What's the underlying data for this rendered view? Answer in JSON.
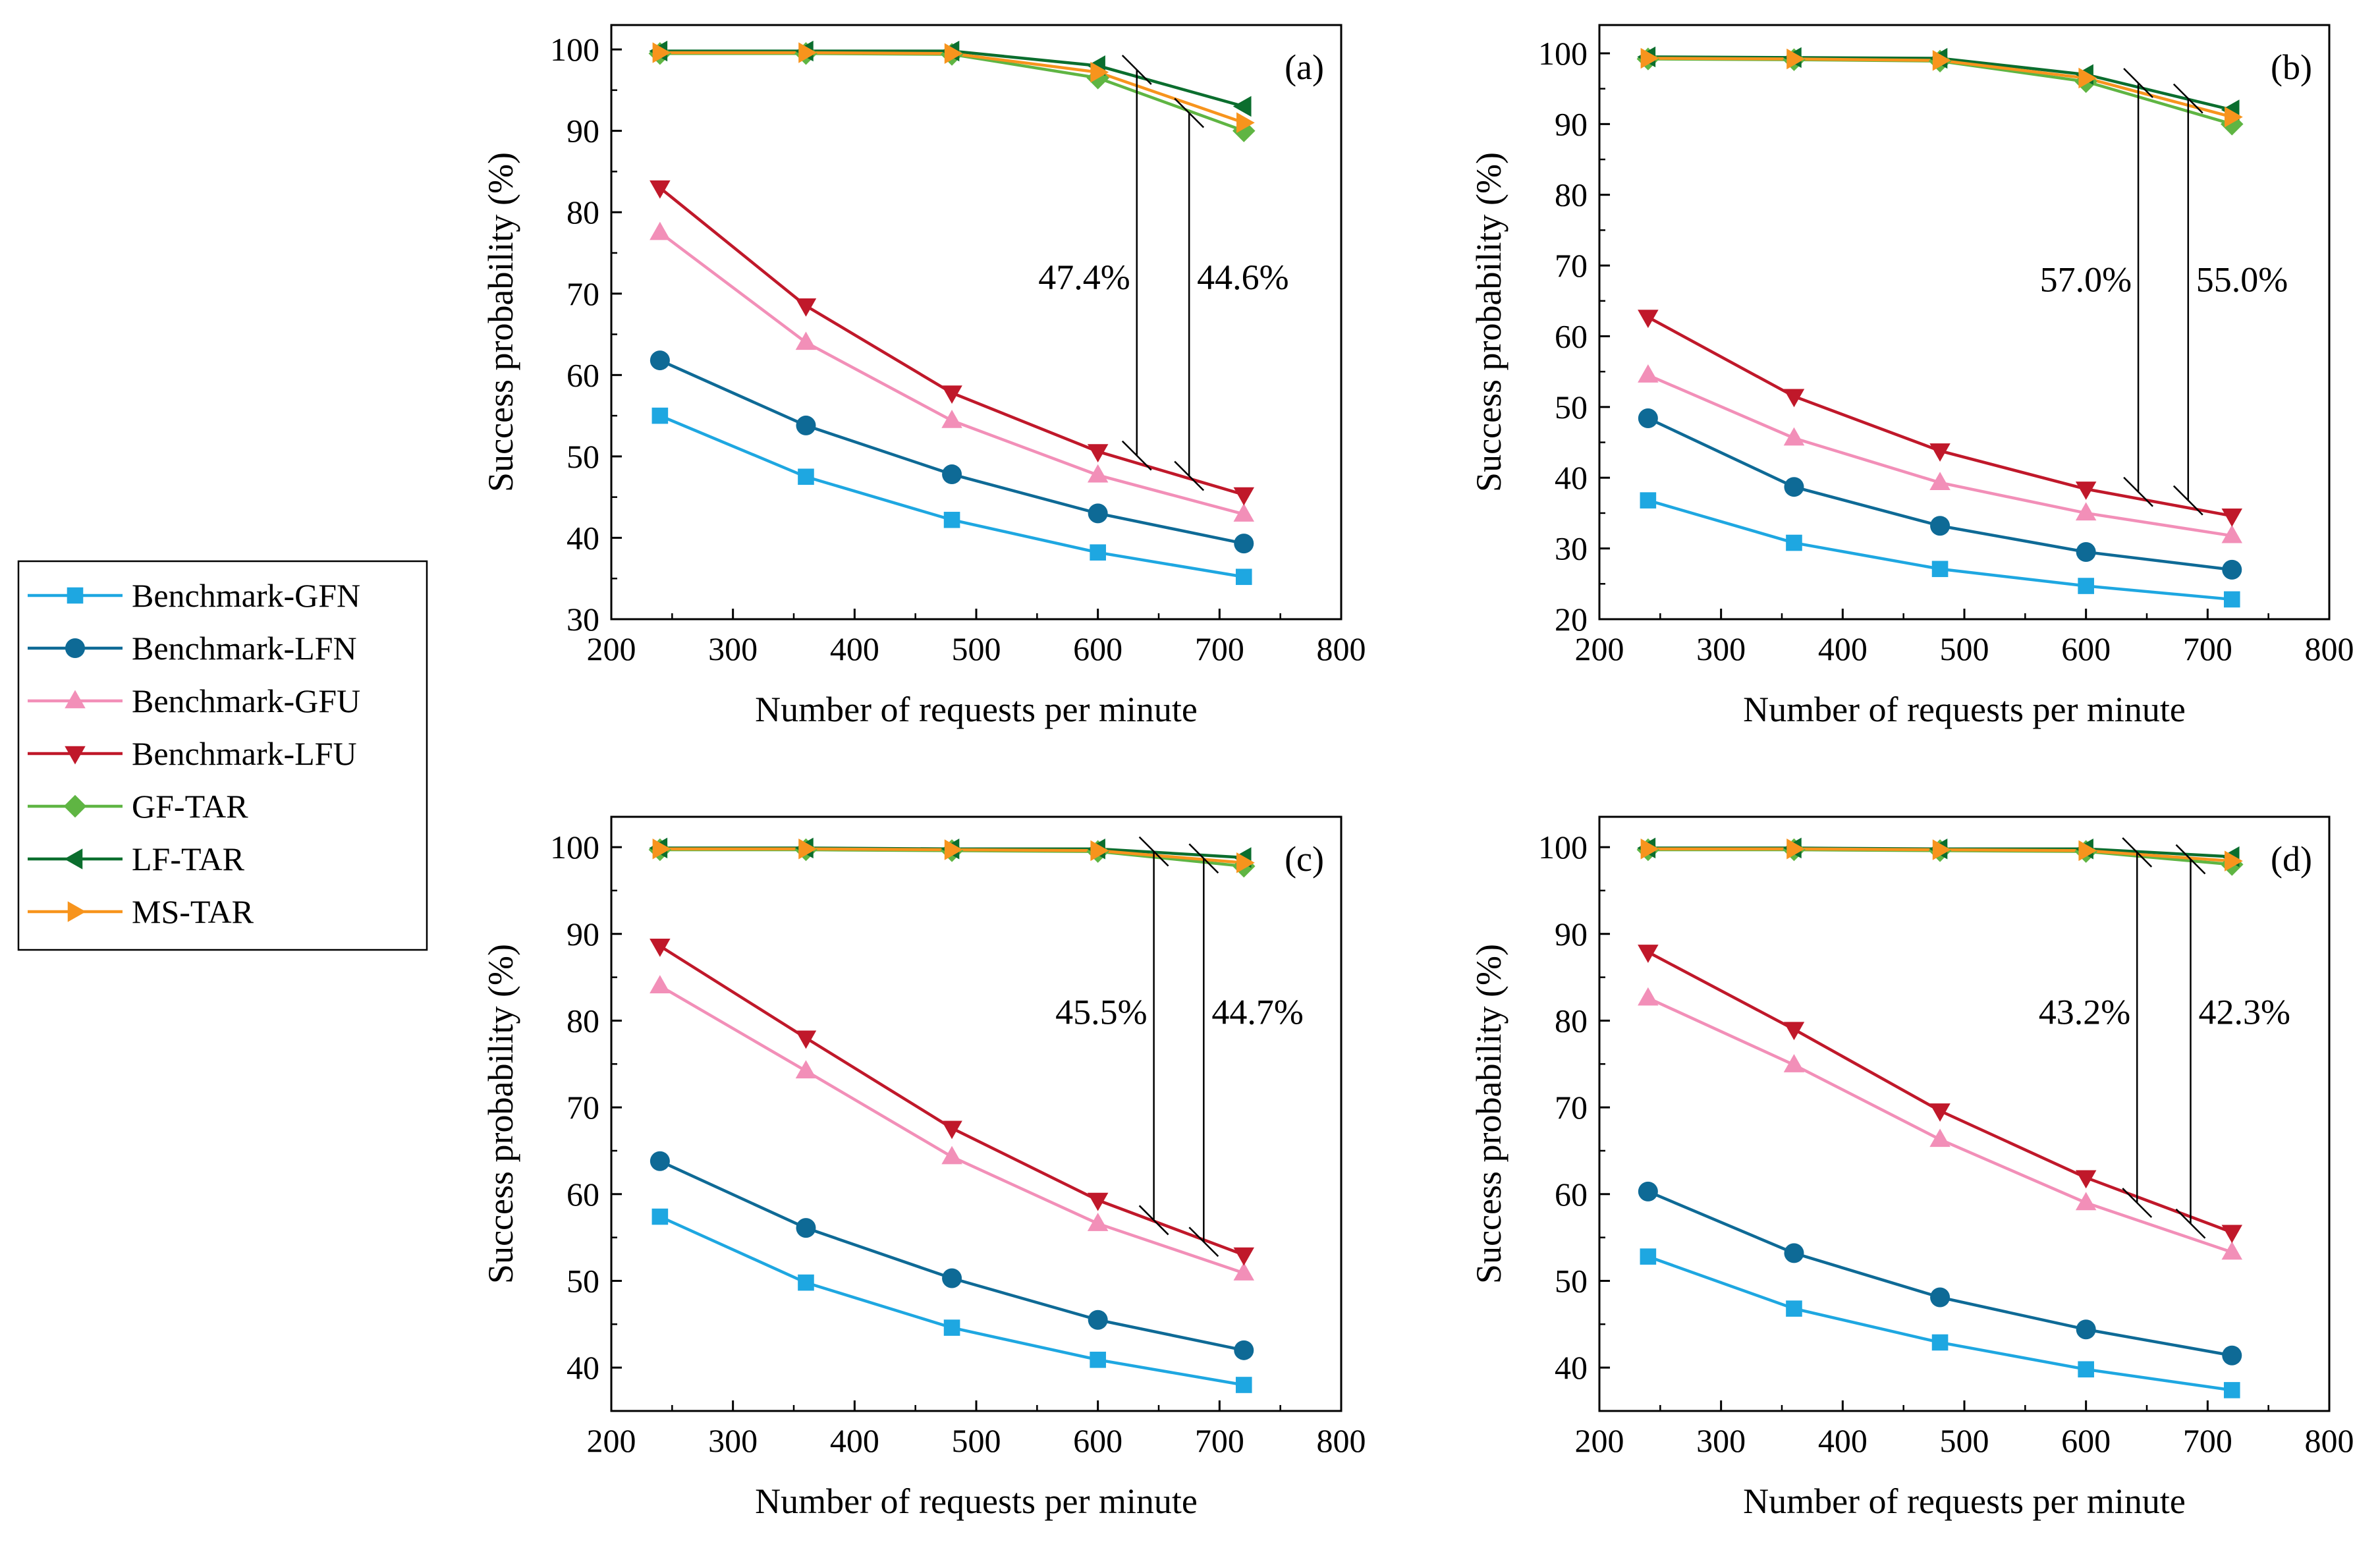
{
  "legend": {
    "items": [
      {
        "name": "Benchmark-GFN",
        "color": "#1ea7e1",
        "marker": "square"
      },
      {
        "name": "Benchmark-LFN",
        "color": "#0e6a96",
        "marker": "circle"
      },
      {
        "name": "Benchmark-GFU",
        "color": "#f28fb8",
        "marker": "triangle-up"
      },
      {
        "name": "Benchmark-LFU",
        "color": "#c0182a",
        "marker": "triangle-down"
      },
      {
        "name": "GF-TAR",
        "color": "#5fb543",
        "marker": "diamond"
      },
      {
        "name": "LF-TAR",
        "color": "#0b6e2e",
        "marker": "triangle-left"
      },
      {
        "name": "MS-TAR",
        "color": "#f7941d",
        "marker": "triangle-right"
      }
    ]
  },
  "chart_data": [
    {
      "type": "line",
      "panel": "(a)",
      "xlabel": "Number of requests per minute",
      "ylabel": "Success probability (%)",
      "xlim": [
        200,
        800
      ],
      "ylim": [
        30,
        103
      ],
      "xticks": [
        200,
        300,
        400,
        500,
        600,
        700,
        800
      ],
      "yticks": [
        30,
        40,
        50,
        60,
        70,
        80,
        90,
        100
      ],
      "x": [
        240,
        360,
        480,
        600,
        720
      ],
      "series": [
        {
          "name": "Benchmark-GFN",
          "values": [
            55.0,
            47.5,
            42.2,
            38.2,
            35.2
          ]
        },
        {
          "name": "Benchmark-LFN",
          "values": [
            61.8,
            53.8,
            47.8,
            43.0,
            39.3
          ]
        },
        {
          "name": "Benchmark-GFU",
          "values": [
            77.5,
            64.0,
            54.4,
            47.7,
            42.9
          ]
        },
        {
          "name": "Benchmark-LFU",
          "values": [
            83.0,
            68.5,
            57.8,
            50.6,
            45.3
          ]
        },
        {
          "name": "GF-TAR",
          "values": [
            99.5,
            99.5,
            99.4,
            96.5,
            90.0
          ]
        },
        {
          "name": "LF-TAR",
          "values": [
            99.8,
            99.8,
            99.8,
            98.0,
            93.0
          ]
        },
        {
          "name": "MS-TAR",
          "values": [
            99.6,
            99.6,
            99.5,
            97.2,
            91.0
          ]
        }
      ],
      "annotations": [
        {
          "text": "47.4%",
          "x": 632,
          "y_top": 97.5,
          "y_bottom": 50.1,
          "label_y": 72,
          "side": "left"
        },
        {
          "text": "44.6%",
          "x": 675,
          "y_top": 92.2,
          "y_bottom": 47.6,
          "label_y": 72,
          "side": "right"
        }
      ]
    },
    {
      "type": "line",
      "panel": "(b)",
      "xlabel": "Number of requests per minute",
      "ylabel": "Success probability (%)",
      "xlim": [
        200,
        800
      ],
      "ylim": [
        20,
        104
      ],
      "xticks": [
        200,
        300,
        400,
        500,
        600,
        700,
        800
      ],
      "yticks": [
        20,
        30,
        40,
        50,
        60,
        70,
        80,
        90,
        100
      ],
      "x": [
        240,
        360,
        480,
        600,
        720
      ],
      "series": [
        {
          "name": "Benchmark-GFN",
          "values": [
            36.8,
            30.8,
            27.1,
            24.7,
            22.8
          ]
        },
        {
          "name": "Benchmark-LFN",
          "values": [
            48.4,
            38.7,
            33.2,
            29.5,
            27.0
          ]
        },
        {
          "name": "Benchmark-GFU",
          "values": [
            54.5,
            45.6,
            39.3,
            35.0,
            31.8
          ]
        },
        {
          "name": "Benchmark-LFU",
          "values": [
            62.7,
            51.5,
            43.8,
            38.4,
            34.6
          ]
        },
        {
          "name": "GF-TAR",
          "values": [
            99.2,
            99.1,
            98.9,
            96.0,
            90.0
          ]
        },
        {
          "name": "LF-TAR",
          "values": [
            99.5,
            99.4,
            99.3,
            97.0,
            92.0
          ]
        },
        {
          "name": "MS-TAR",
          "values": [
            99.3,
            99.2,
            99.0,
            96.5,
            91.0
          ]
        }
      ],
      "annotations": [
        {
          "text": "57.0%",
          "x": 643,
          "y_top": 95.8,
          "y_bottom": 38.0,
          "label_y": 68,
          "side": "left"
        },
        {
          "text": "55.0%",
          "x": 684,
          "y_top": 93.6,
          "y_bottom": 36.8,
          "label_y": 68,
          "side": "right"
        }
      ]
    },
    {
      "type": "line",
      "panel": "(c)",
      "xlabel": "Number of requests per minute",
      "ylabel": "Success probability (%)",
      "xlim": [
        200,
        800
      ],
      "ylim": [
        35,
        103.5
      ],
      "xticks": [
        200,
        300,
        400,
        500,
        600,
        700,
        800
      ],
      "yticks": [
        40,
        50,
        60,
        70,
        80,
        90,
        100
      ],
      "x": [
        240,
        360,
        480,
        600,
        720
      ],
      "series": [
        {
          "name": "Benchmark-GFN",
          "values": [
            57.4,
            49.8,
            44.6,
            40.9,
            38.0
          ]
        },
        {
          "name": "Benchmark-LFN",
          "values": [
            63.8,
            56.1,
            50.3,
            45.5,
            42.0
          ]
        },
        {
          "name": "Benchmark-GFU",
          "values": [
            84.0,
            74.2,
            64.3,
            56.6,
            50.9
          ]
        },
        {
          "name": "Benchmark-LFU",
          "values": [
            88.6,
            78.0,
            67.6,
            59.3,
            53.0
          ]
        },
        {
          "name": "GF-TAR",
          "values": [
            99.7,
            99.7,
            99.6,
            99.5,
            97.8
          ]
        },
        {
          "name": "LF-TAR",
          "values": [
            99.9,
            99.9,
            99.8,
            99.8,
            98.8
          ]
        },
        {
          "name": "MS-TAR",
          "values": [
            99.8,
            99.8,
            99.7,
            99.6,
            98.2
          ]
        }
      ],
      "annotations": [
        {
          "text": "45.5%",
          "x": 646,
          "y_top": 99.5,
          "y_bottom": 57.0,
          "label_y": 81,
          "side": "left"
        },
        {
          "text": "44.7%",
          "x": 687,
          "y_top": 98.7,
          "y_bottom": 54.5,
          "label_y": 81,
          "side": "right"
        }
      ]
    },
    {
      "type": "line",
      "panel": "(d)",
      "xlabel": "Number of requests per minute",
      "ylabel": "Success probability (%)",
      "xlim": [
        200,
        800
      ],
      "ylim": [
        35,
        103.5
      ],
      "xticks": [
        200,
        300,
        400,
        500,
        600,
        700,
        800
      ],
      "yticks": [
        40,
        50,
        60,
        70,
        80,
        90,
        100
      ],
      "x": [
        240,
        360,
        480,
        600,
        720
      ],
      "series": [
        {
          "name": "Benchmark-GFN",
          "values": [
            52.8,
            46.8,
            42.9,
            39.8,
            37.4
          ]
        },
        {
          "name": "Benchmark-LFN",
          "values": [
            60.3,
            53.2,
            48.1,
            44.4,
            41.4
          ]
        },
        {
          "name": "Benchmark-GFU",
          "values": [
            82.6,
            74.9,
            66.3,
            59.0,
            53.3
          ]
        },
        {
          "name": "Benchmark-LFU",
          "values": [
            87.9,
            79.0,
            69.6,
            61.9,
            55.6
          ]
        },
        {
          "name": "GF-TAR",
          "values": [
            99.7,
            99.7,
            99.6,
            99.5,
            98.0
          ]
        },
        {
          "name": "LF-TAR",
          "values": [
            99.9,
            99.9,
            99.8,
            99.8,
            98.9
          ]
        },
        {
          "name": "MS-TAR",
          "values": [
            99.8,
            99.8,
            99.7,
            99.6,
            98.4
          ]
        }
      ],
      "annotations": [
        {
          "text": "43.2%",
          "x": 642,
          "y_top": 99.4,
          "y_bottom": 59.0,
          "label_y": 81,
          "side": "left"
        },
        {
          "text": "42.3%",
          "x": 686,
          "y_top": 98.6,
          "y_bottom": 56.6,
          "label_y": 81,
          "side": "right"
        }
      ]
    }
  ]
}
